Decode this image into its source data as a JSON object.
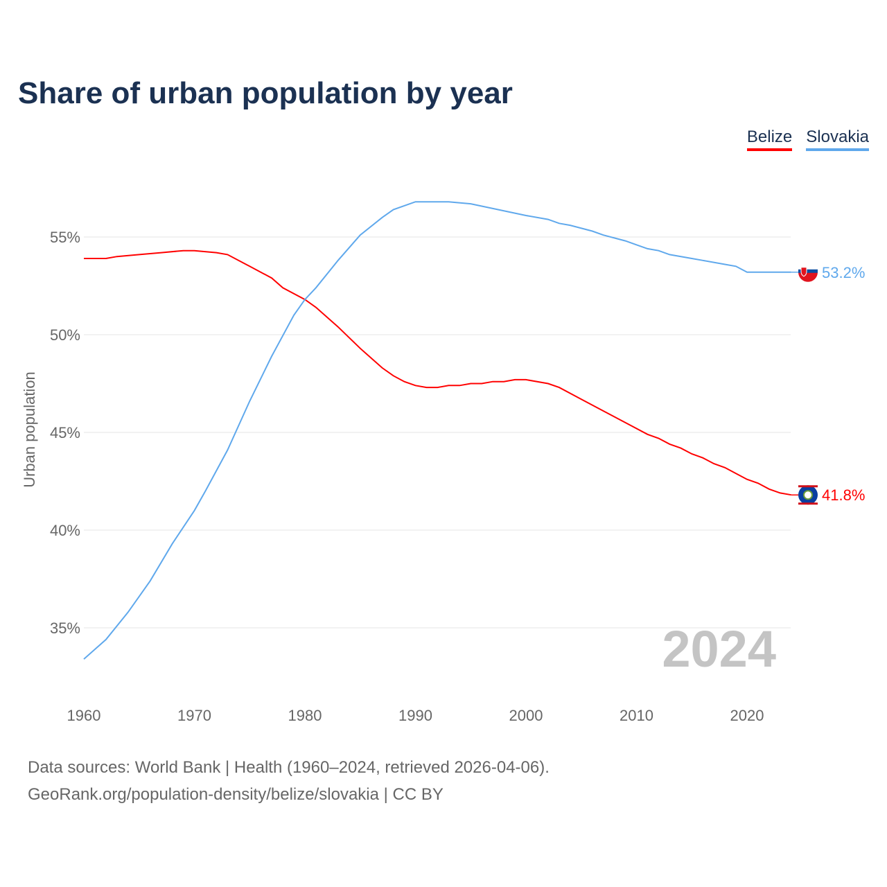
{
  "chart_data": {
    "type": "line",
    "title": "Share of urban population by year",
    "ylabel": "Urban population",
    "xlabel": "",
    "xlim": [
      1960,
      2024
    ],
    "ylim": [
      32.5,
      58
    ],
    "xticks": [
      1960,
      1970,
      1980,
      1990,
      2000,
      2010,
      2020
    ],
    "yticks": [
      35,
      40,
      45,
      50,
      55
    ],
    "ytick_labels": [
      "35%",
      "40%",
      "45%",
      "50%",
      "55%"
    ],
    "grid": true,
    "legend_position": "top-right",
    "year_watermark": "2024",
    "series": [
      {
        "name": "Belize",
        "color": "#ff0000",
        "end_label": "41.8%",
        "x": [
          1960,
          1962,
          1963,
          1965,
          1967,
          1969,
          1970,
          1972,
          1973,
          1975,
          1977,
          1978,
          1980,
          1981,
          1983,
          1985,
          1987,
          1988,
          1989,
          1990,
          1991,
          1992,
          1993,
          1994,
          1995,
          1996,
          1997,
          1998,
          1999,
          2000,
          2002,
          2003,
          2005,
          2007,
          2009,
          2011,
          2012,
          2013,
          2014,
          2015,
          2016,
          2017,
          2018,
          2019,
          2020,
          2021,
          2022,
          2023,
          2024
        ],
        "y": [
          53.9,
          53.9,
          54.0,
          54.1,
          54.2,
          54.3,
          54.3,
          54.2,
          54.1,
          53.5,
          52.9,
          52.4,
          51.8,
          51.4,
          50.4,
          49.3,
          48.3,
          47.9,
          47.6,
          47.4,
          47.3,
          47.3,
          47.4,
          47.4,
          47.5,
          47.5,
          47.6,
          47.6,
          47.7,
          47.7,
          47.5,
          47.3,
          46.7,
          46.1,
          45.5,
          44.9,
          44.7,
          44.4,
          44.2,
          43.9,
          43.7,
          43.4,
          43.2,
          42.9,
          42.6,
          42.4,
          42.1,
          41.9,
          41.8
        ]
      },
      {
        "name": "Slovakia",
        "color": "#5fa8ec",
        "end_label": "53.2%",
        "x": [
          1960,
          1962,
          1964,
          1966,
          1968,
          1970,
          1971,
          1973,
          1975,
          1977,
          1979,
          1980,
          1981,
          1983,
          1985,
          1987,
          1988,
          1990,
          1993,
          1995,
          2000,
          2002,
          2003,
          2004,
          2006,
          2007,
          2009,
          2010,
          2011,
          2012,
          2013,
          2015,
          2016,
          2018,
          2019,
          2020,
          2024
        ],
        "y": [
          33.4,
          34.4,
          35.8,
          37.4,
          39.3,
          41.0,
          42.0,
          44.1,
          46.6,
          48.9,
          51.0,
          51.8,
          52.4,
          53.8,
          55.1,
          56.0,
          56.4,
          56.8,
          56.8,
          56.7,
          56.1,
          55.9,
          55.7,
          55.6,
          55.3,
          55.1,
          54.8,
          54.6,
          54.4,
          54.3,
          54.1,
          53.9,
          53.8,
          53.6,
          53.5,
          53.2,
          53.2
        ]
      }
    ]
  },
  "footer": {
    "line1": "Data sources: World Bank | Health (1960–2024, retrieved 2026-04-06).",
    "line2": "GeoRank.org/population-density/belize/slovakia | CC BY"
  }
}
